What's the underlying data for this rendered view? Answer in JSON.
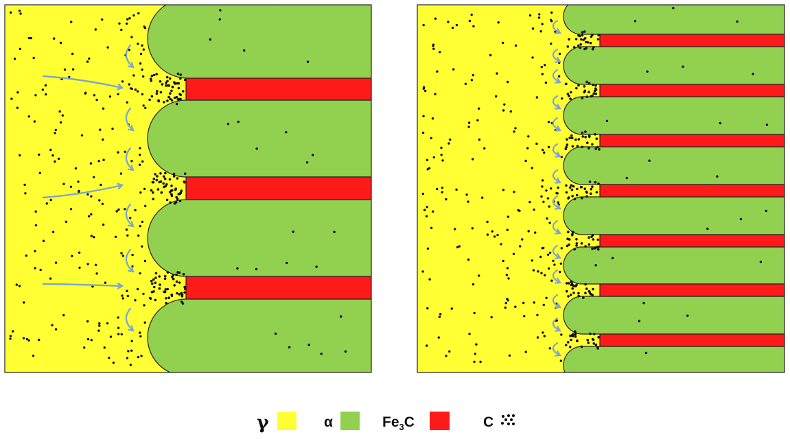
{
  "colors": {
    "austenite": "#ffff33",
    "ferrite": "#92d050",
    "cementite": "#ff1a1a",
    "carbon": "#111111",
    "arrow": "#7aa6cf",
    "outline": "#222222"
  },
  "panels": [
    {
      "name": "coarse-lamellae",
      "ferrite_plates": 4,
      "cementite_plates": 3,
      "arrow_style": "long-and-curved"
    },
    {
      "name": "fine-lamellae",
      "ferrite_plates": 8,
      "cementite_plates": 7,
      "arrow_style": "curved"
    }
  ],
  "legend": {
    "gamma": {
      "symbol": "γ",
      "color": "#ffff33"
    },
    "alpha": {
      "symbol": "α",
      "color": "#92d050"
    },
    "cementite": {
      "base": "Fe",
      "subscript": "3",
      "suffix": "C",
      "color": "#ff1a1a"
    },
    "carbon": {
      "symbol": "C",
      "icon": "carbon-dots-icon"
    }
  }
}
